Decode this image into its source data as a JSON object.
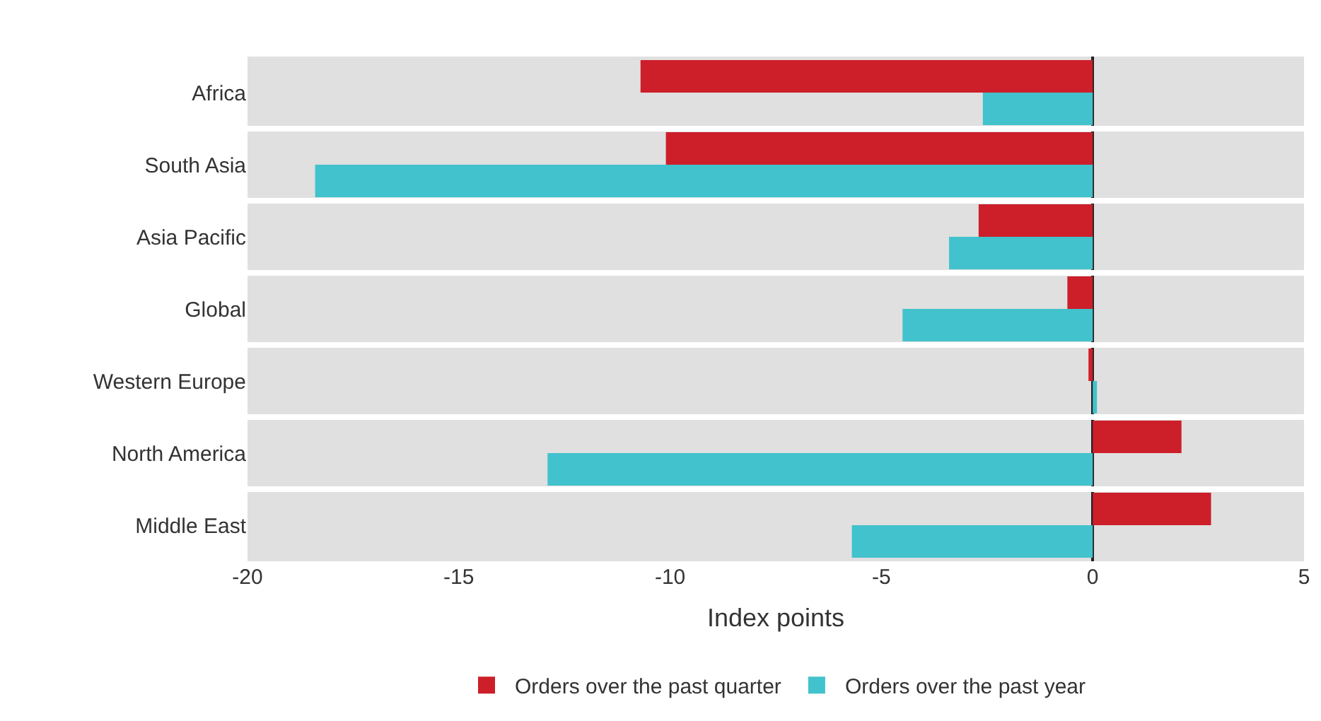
{
  "chart_data": {
    "type": "bar",
    "orientation": "horizontal",
    "xlabel": "Index points",
    "categories": [
      "Africa",
      "South Asia",
      "Asia Pacific",
      "Global",
      "Western Europe",
      "North America",
      "Middle East"
    ],
    "series": [
      {
        "name": "Orders over the past quarter",
        "color": "#cc1f2a",
        "values": [
          -10.7,
          -10.1,
          -2.7,
          -0.6,
          -0.1,
          2.1,
          2.8
        ]
      },
      {
        "name": "Orders over the past year",
        "color": "#42c2cc",
        "values": [
          -2.6,
          -18.4,
          -3.4,
          -4.5,
          0.1,
          -12.9,
          -5.7
        ]
      }
    ],
    "xlim": [
      -20,
      5
    ],
    "xticks": [
      -20,
      -15,
      -10,
      -5,
      0,
      5
    ],
    "grid": "y",
    "legend": "bottom"
  }
}
